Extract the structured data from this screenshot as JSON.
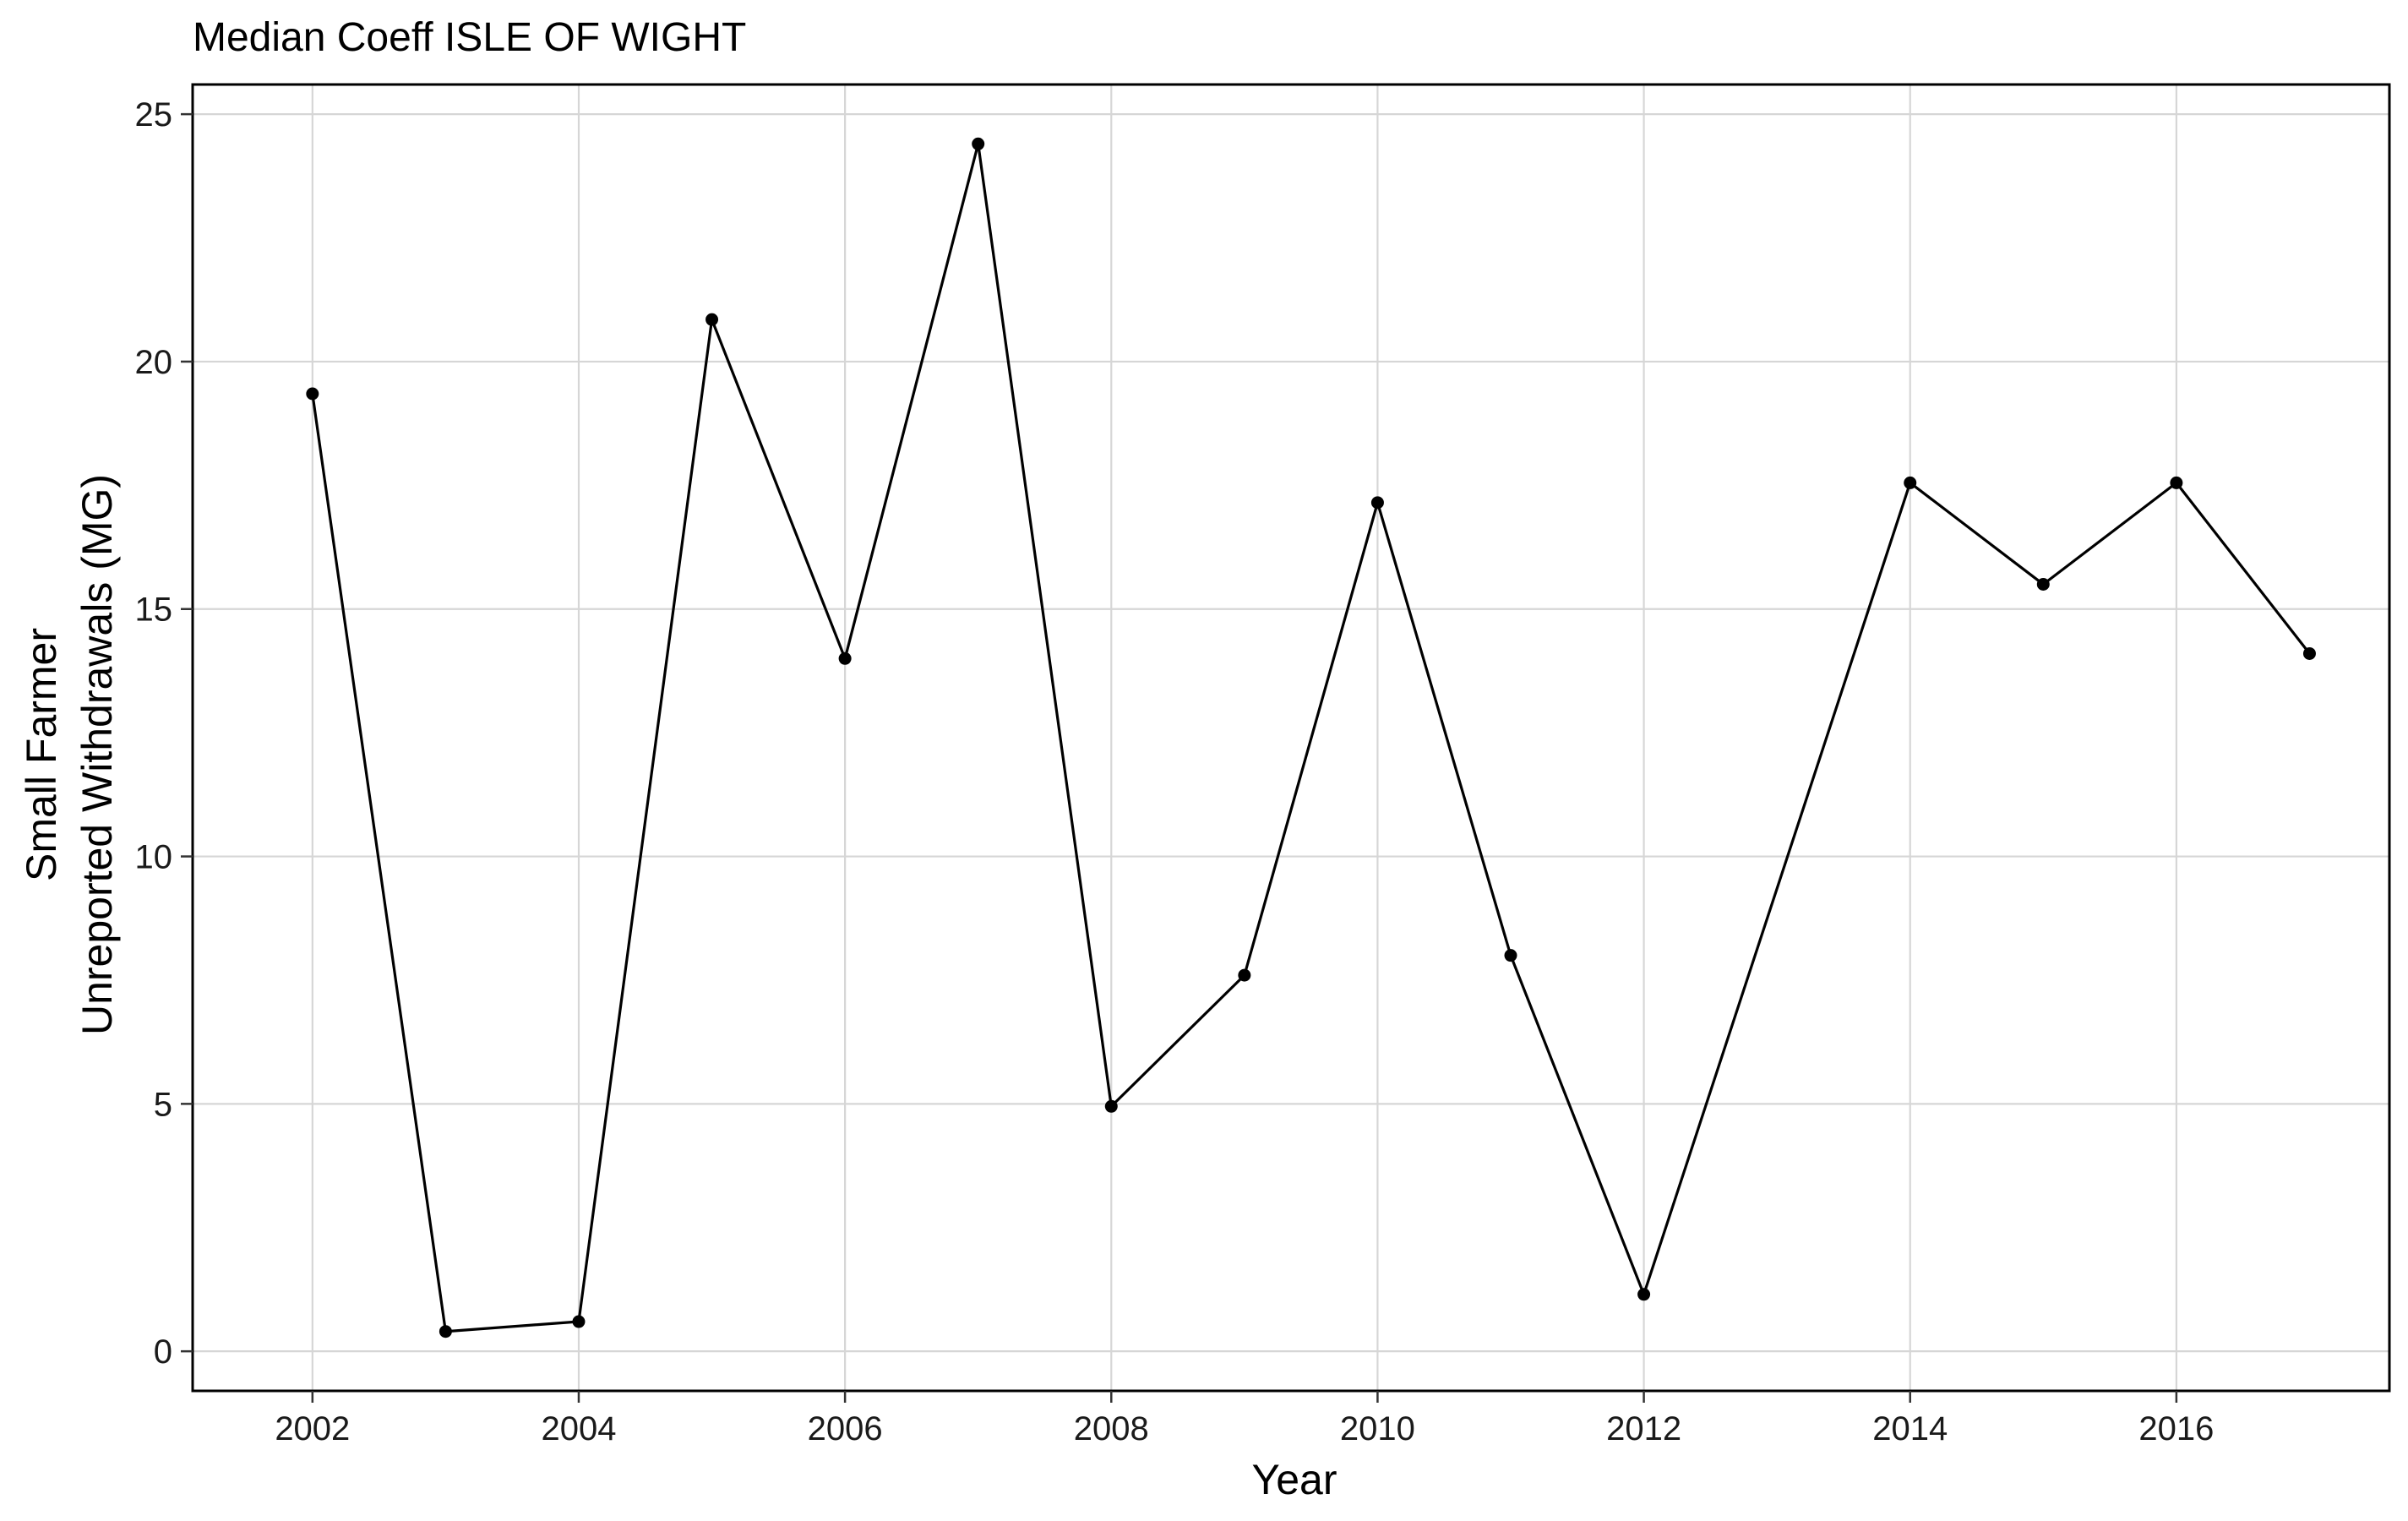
{
  "chart_data": {
    "type": "line",
    "title": "Median Coeff ISLE OF WIGHT",
    "xlabel": "Year",
    "ylabel_lines": [
      "Small Farmer",
      "Unreported Withdrawals (MG)"
    ],
    "x_ticks": [
      2002,
      2004,
      2006,
      2008,
      2010,
      2012,
      2014,
      2016
    ],
    "y_ticks": [
      0,
      5,
      10,
      15,
      20,
      25
    ],
    "xlim": [
      2001.1,
      2017.6
    ],
    "ylim": [
      -0.8,
      25.6
    ],
    "grid": true,
    "legend": "none",
    "series": [
      {
        "x": [
          2002,
          2003,
          2004,
          2005,
          2006,
          2007,
          2008,
          2009,
          2010,
          2011,
          2012,
          2014,
          2015,
          2016,
          2017
        ],
        "values": [
          19.35,
          0.4,
          0.6,
          20.85,
          14.0,
          24.4,
          4.95,
          7.6,
          17.15,
          8.0,
          1.15,
          17.55,
          15.5,
          17.55,
          14.1
        ]
      }
    ],
    "colors": {
      "line": "#000000",
      "point": "#000000",
      "grid": "#d6d6d6"
    }
  }
}
